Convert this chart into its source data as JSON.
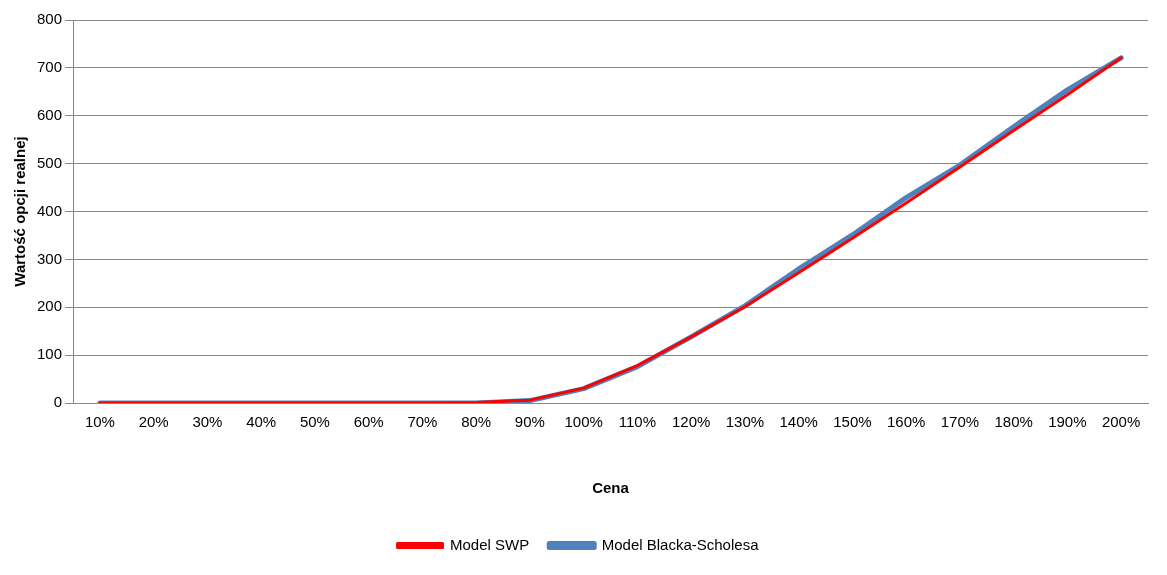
{
  "chart_data": {
    "type": "line",
    "xlabel": "Cena",
    "ylabel": "Wartość opcji realnej",
    "categories": [
      "10%",
      "20%",
      "30%",
      "40%",
      "50%",
      "60%",
      "70%",
      "80%",
      "90%",
      "100%",
      "110%",
      "120%",
      "130%",
      "140%",
      "150%",
      "160%",
      "170%",
      "180%",
      "190%",
      "200%"
    ],
    "series": [
      {
        "name": "Model SWP",
        "color": "#ff0000",
        "values": [
          0,
          0,
          0,
          0,
          0,
          0,
          0,
          1,
          6,
          31,
          78,
          138,
          201,
          272,
          344,
          418,
          493,
          569,
          644,
          721
        ]
      },
      {
        "name": "Model Blacka-Scholesa",
        "color": "#4f81bd",
        "values": [
          0,
          0,
          0,
          0,
          0,
          0,
          0,
          0,
          5,
          30,
          76,
          138,
          203,
          280,
          351,
          429,
          497,
          577,
          654,
          721
        ]
      }
    ],
    "ylim": [
      0,
      800
    ],
    "yticks": [
      0,
      100,
      200,
      300,
      400,
      500,
      600,
      700,
      800
    ],
    "grid": "y",
    "legend": "bottom",
    "marker": "none",
    "line_style": "solid"
  }
}
